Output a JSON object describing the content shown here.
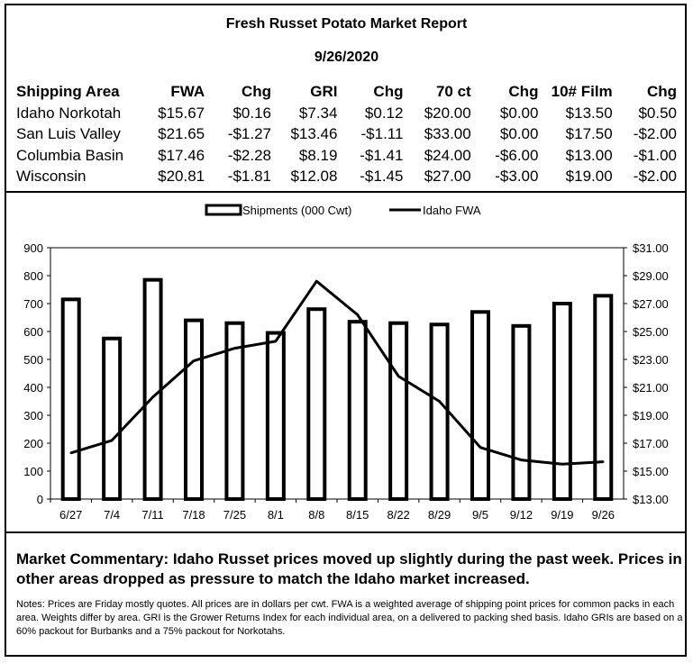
{
  "report": {
    "title": "Fresh Russet Potato Market Report",
    "date": "9/26/2020"
  },
  "table": {
    "headers": [
      "Shipping Area",
      "FWA",
      "Chg",
      "GRI",
      "Chg",
      "70 ct",
      "Chg",
      "10# Film",
      "Chg"
    ],
    "rows": [
      [
        "Idaho Norkotah",
        "$15.67",
        "$0.16",
        "$7.34",
        "$0.12",
        "$20.00",
        "$0.00",
        "$13.50",
        "$0.50"
      ],
      [
        "San Luis Valley",
        "$21.65",
        "-$1.27",
        "$13.46",
        "-$1.11",
        "$33.00",
        "$0.00",
        "$17.50",
        "-$2.00"
      ],
      [
        "Columbia Basin",
        "$17.46",
        "-$2.28",
        "$8.19",
        "-$1.41",
        "$24.00",
        "-$6.00",
        "$13.00",
        "-$1.00"
      ],
      [
        "Wisconsin",
        "$20.81",
        "-$1.81",
        "$12.08",
        "-$1.45",
        "$27.00",
        "-$3.00",
        "$19.00",
        "-$2.00"
      ]
    ]
  },
  "chart_data": {
    "type": "bar",
    "categories": [
      "6/27",
      "7/4",
      "7/11",
      "7/18",
      "7/25",
      "8/1",
      "8/8",
      "8/15",
      "8/22",
      "8/29",
      "9/5",
      "9/12",
      "9/19",
      "9/26"
    ],
    "series": [
      {
        "name": "Shipments (000 Cwt)",
        "type": "bar",
        "axis": "left",
        "values": [
          715,
          575,
          785,
          640,
          630,
          595,
          680,
          635,
          630,
          625,
          670,
          620,
          700,
          728
        ]
      },
      {
        "name": "Idaho FWA",
        "type": "line",
        "axis": "right",
        "values": [
          16.3,
          17.2,
          20.3,
          22.9,
          23.8,
          24.3,
          28.6,
          26.2,
          21.8,
          20.0,
          16.7,
          15.8,
          15.5,
          15.67
        ]
      }
    ],
    "yleft": {
      "min": 0,
      "max": 900,
      "ticks": [
        "0",
        "100",
        "200",
        "300",
        "400",
        "500",
        "600",
        "700",
        "800",
        "900"
      ]
    },
    "yright": {
      "min": 13,
      "max": 31,
      "ticks": [
        "$13.00",
        "$15.00",
        "$17.00",
        "$19.00",
        "$21.00",
        "$23.00",
        "$25.00",
        "$27.00",
        "$29.00",
        "$31.00"
      ]
    },
    "legend_position": "top-center",
    "grid": false
  },
  "commentary": "Market Commentary: Idaho Russet prices moved up slightly during the past week. Prices in other areas dropped as pressure to match the Idaho market increased.",
  "notes": "Notes: Prices are Friday mostly quotes. All prices are in dollars per cwt. FWA is a weighted average of shipping point prices for  common packs in each area. Weights differ by area. GRI is the Grower Returns Index for each individual area, on a delivered to packing shed basis. Idaho GRIs are based on a 60% packout for Burbanks and a 75% packout for Norkotahs."
}
